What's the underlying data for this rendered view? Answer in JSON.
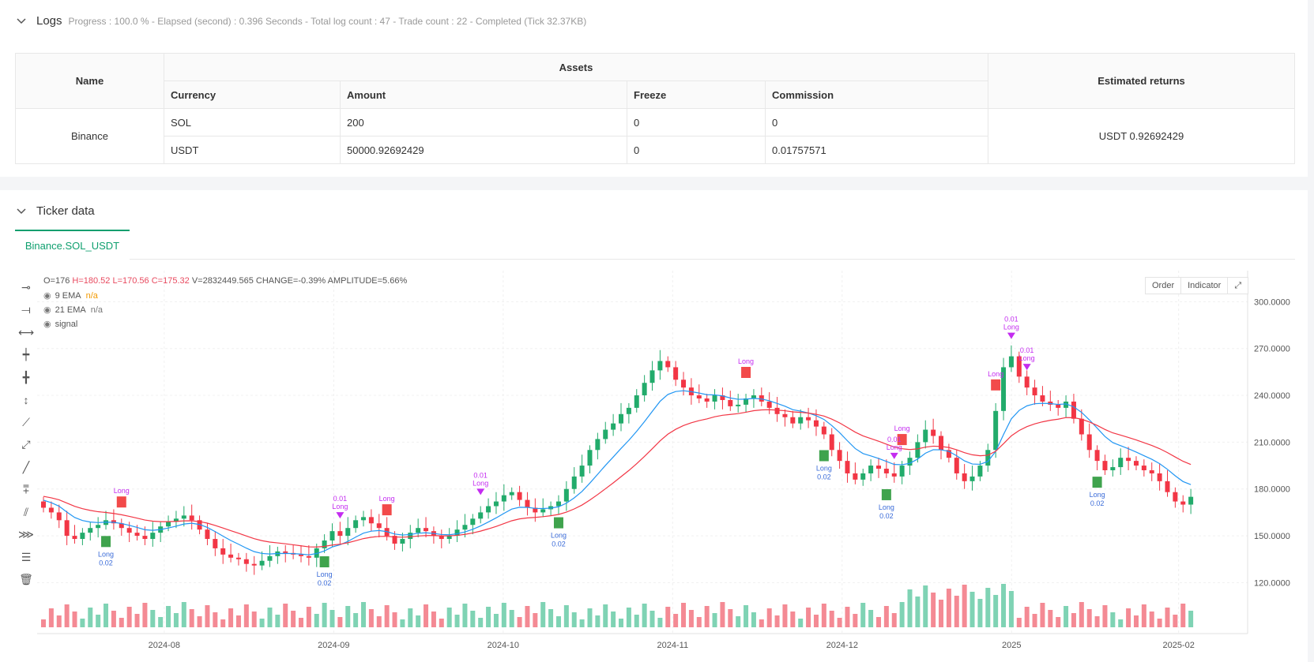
{
  "logs": {
    "title": "Logs",
    "summary": "Progress : 100.0 % - Elapsed (second) : 0.396  Seconds - Total log count : 47 - Trade count : 22 - Completed (Tick 32.37KB)"
  },
  "assets_table": {
    "name_header": "Name",
    "assets_header": "Assets",
    "returns_header": "Estimated returns",
    "columns": [
      "Currency",
      "Amount",
      "Freeze",
      "Commission"
    ],
    "exchange": "Binance",
    "rows": [
      {
        "currency": "SOL",
        "amount": "200",
        "freeze": "0",
        "commission": "0"
      },
      {
        "currency": "USDT",
        "amount": "50000.92692429",
        "freeze": "0",
        "commission": "0.01757571"
      }
    ],
    "estimated_returns": "USDT 0.92692429"
  },
  "ticker": {
    "title": "Ticker data",
    "tab": "Binance.SOL_USDT"
  },
  "chart_header": {
    "o": "O=176",
    "h": "H=180.52",
    "l": "L=170.56",
    "c": "C=175.32",
    "v": "V=2832449.565",
    "change": "CHANGE=-0.39%",
    "amplitude": "AMPLITUDE=5.66%",
    "ema9_label": "9 EMA",
    "ema9_value": "n/a",
    "ema21_label": "21 EMA",
    "ema21_value": "n/a",
    "signal_label": "signal",
    "order_btn": "Order",
    "indicator_btn": "Indicator"
  },
  "colors": {
    "up": "#26a69a",
    "up_bar": "#22ab6b",
    "down": "#f23645",
    "ema9": "#2196f3",
    "ema21": "#f23645",
    "signal": "#c42cf0",
    "long": "#3fa34d",
    "exit": "#f24a4a"
  },
  "chart_data": {
    "type": "candlestick",
    "y_ticks": [
      "120.0000",
      "150.0000",
      "180.0000",
      "210.0000",
      "240.0000",
      "270.0000",
      "300.0000"
    ],
    "x_ticks": [
      "2024-08",
      "2024-09",
      "2024-10",
      "2024-11",
      "2024-12",
      "2025",
      "2025-02"
    ],
    "ylim": [
      100,
      330
    ],
    "series_close": [
      168,
      165,
      160,
      150,
      148,
      152,
      155,
      157,
      160,
      158,
      155,
      152,
      150,
      148,
      152,
      156,
      159,
      161,
      163,
      160,
      154,
      148,
      142,
      138,
      136,
      135,
      132,
      131,
      134,
      137,
      140,
      139,
      138,
      137,
      136,
      142,
      147,
      153,
      150,
      155,
      160,
      162,
      158,
      155,
      150,
      145,
      148,
      152,
      155,
      153,
      150,
      148,
      150,
      154,
      157,
      161,
      165,
      169,
      172,
      176,
      178,
      173,
      168,
      165,
      167,
      169,
      172,
      180,
      188,
      195,
      205,
      212,
      218,
      222,
      228,
      232,
      240,
      248,
      256,
      262,
      258,
      250,
      245,
      240,
      238,
      236,
      240,
      237,
      233,
      234,
      238,
      240,
      236,
      232,
      228,
      226,
      222,
      226,
      224,
      220,
      215,
      205,
      198,
      190,
      186,
      190,
      195,
      193,
      190,
      188,
      195,
      200,
      210,
      218,
      214,
      205,
      200,
      190,
      185,
      188,
      195,
      205,
      230,
      258,
      265,
      252,
      245,
      240,
      236,
      234,
      232,
      236,
      225,
      215,
      205,
      198,
      192,
      194,
      200,
      198,
      195,
      192,
      190,
      185,
      178,
      172,
      170,
      175
    ],
    "signals": [
      "Long",
      "0.01",
      "0.02"
    ]
  }
}
